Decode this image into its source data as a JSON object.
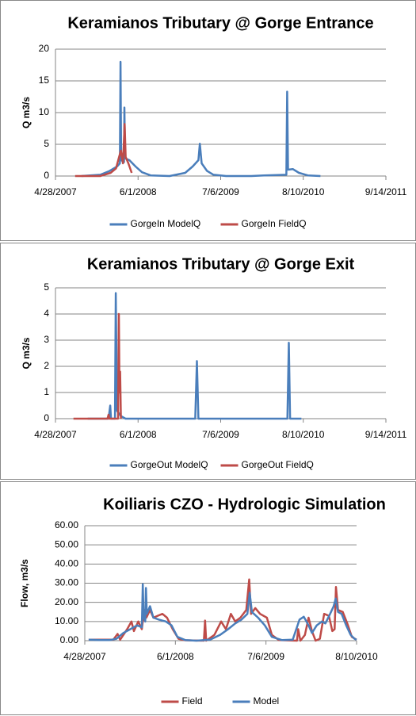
{
  "chart_data": [
    {
      "type": "line",
      "title": "Keramianos Tributary @ Gorge Entrance",
      "y_label": "Q m3/s",
      "xlim": [
        "4/28/2007",
        "9/14/2011"
      ],
      "xticks": [
        "4/28/2007",
        "6/1/2008",
        "7/6/2009",
        "8/10/2010",
        "9/14/2011"
      ],
      "ylim": [
        0,
        20
      ],
      "yticks": [
        0,
        5,
        10,
        15,
        20
      ],
      "grid": true,
      "legend": "bottom",
      "series": [
        {
          "name": "GorgeIn ModelQ",
          "color": "#4a7ebb",
          "x": [
            "9/1/2007",
            "12/1/2007",
            "1/15/2008",
            "2/20/2008",
            "3/5/2008",
            "3/8/2008",
            "3/11/2008",
            "3/25/2008",
            "3/27/2008",
            "3/30/2008",
            "4/20/2008",
            "5/20/2008",
            "6/20/2008",
            "8/1/2008",
            "11/1/2008",
            "1/15/2009",
            "2/20/2009",
            "3/20/2009",
            "3/27/2009",
            "4/5/2009",
            "5/1/2009",
            "6/1/2009",
            "8/1/2009",
            "12/1/2009",
            "2/1/2010",
            "5/20/2010",
            "5/24/2010",
            "5/28/2010",
            "6/20/2010",
            "7/20/2010",
            "9/1/2010",
            "11/1/2010"
          ],
          "values": [
            0,
            0.2,
            0.8,
            1.5,
            2,
            18,
            2.5,
            2.2,
            10.8,
            2.8,
            2.5,
            1.5,
            0.6,
            0.1,
            0,
            0.5,
            1.5,
            2.5,
            5.1,
            2,
            0.8,
            0.2,
            0,
            0,
            0.1,
            0.2,
            13.3,
            1,
            1.1,
            0.5,
            0.1,
            0
          ]
        },
        {
          "name": "GorgeIn FieldQ",
          "color": "#be4b48",
          "x": [
            "8/1/2007",
            "12/1/2007",
            "1/20/2008",
            "2/15/2008",
            "3/1/2008",
            "3/10/2008",
            "3/20/2008",
            "3/28/2008",
            "4/2/2008",
            "4/15/2008",
            "5/1/2008"
          ],
          "values": [
            0,
            0,
            0.5,
            1.2,
            3,
            4,
            2,
            8.2,
            3,
            2,
            0.5
          ]
        }
      ]
    },
    {
      "type": "line",
      "title": "Keramianos Tributary @ Gorge Exit",
      "y_label": "Q m3/s",
      "xlim": [
        "4/28/2007",
        "9/14/2011"
      ],
      "xticks": [
        "4/28/2007",
        "6/1/2008",
        "7/6/2009",
        "8/10/2010",
        "9/14/2011"
      ],
      "ylim": [
        0,
        5
      ],
      "yticks": [
        0,
        1,
        2,
        3,
        4,
        5
      ],
      "grid": true,
      "legend": "bottom",
      "series": [
        {
          "name": "GorgeOut ModelQ",
          "color": "#4a7ebb",
          "x": [
            "10/1/2007",
            "1/10/2008",
            "1/18/2008",
            "1/22/2008",
            "2/10/2008",
            "2/14/2008",
            "2/20/2008",
            "3/10/2008",
            "4/1/2008",
            "3/5/2009",
            "3/13/2009",
            "3/20/2009",
            "5/25/2010",
            "6/1/2010",
            "6/7/2010",
            "8/1/2010"
          ],
          "values": [
            0,
            0,
            0.5,
            0,
            0,
            4.8,
            0.3,
            0.1,
            0,
            0,
            2.2,
            0,
            0,
            2.9,
            0,
            0
          ]
        },
        {
          "name": "GorgeOut FieldQ",
          "color": "#be4b48",
          "x": [
            "7/24/2007",
            "1/5/2008",
            "1/10/2008",
            "1/14/2008",
            "2/25/2008",
            "2/29/2008",
            "3/3/2008",
            "3/6/2008",
            "3/10/2008"
          ],
          "values": [
            0,
            0,
            0.15,
            0,
            0,
            4,
            1,
            1.8,
            0
          ]
        }
      ]
    },
    {
      "type": "line",
      "title": "Koiliaris CZO - Hydrologic Simulation",
      "y_label": "Flow, m3/s",
      "xlim": [
        "4/28/2007",
        "8/10/2010"
      ],
      "xticks": [
        "4/28/2007",
        "6/1/2008",
        "7/6/2009",
        "8/10/2010"
      ],
      "ylim": [
        0,
        60
      ],
      "yticks": [
        {
          "value": 0,
          "label": "0.00"
        },
        {
          "value": 10,
          "label": "10.00"
        },
        {
          "value": 20,
          "label": "20.00"
        },
        {
          "value": 30,
          "label": "30.00"
        },
        {
          "value": 40,
          "label": "40.00"
        },
        {
          "value": 50,
          "label": "50.00"
        },
        {
          "value": 60,
          "label": "60.00"
        }
      ],
      "grid": true,
      "legend": "bottom",
      "series": [
        {
          "name": "Field",
          "color": "#be4b48",
          "x": [
            "5/15/2007",
            "9/1/2007",
            "9/20/2007",
            "10/1/2007",
            "11/1/2007",
            "11/20/2007",
            "12/1/2007",
            "12/20/2007",
            "1/5/2008",
            "1/15/2008",
            "1/25/2008",
            "2/10/2008",
            "2/25/2008",
            "3/15/2008",
            "4/5/2008",
            "4/25/2008",
            "5/20/2008",
            "6/15/2008",
            "7/15/2008",
            "10/5/2008",
            "10/10/2008",
            "10/15/2008",
            "11/20/2008",
            "12/20/2008",
            "1/10/2009",
            "2/1/2009",
            "2/20/2009",
            "3/15/2009",
            "4/10/2009",
            "4/23/2009",
            "5/1/2009",
            "5/20/2009",
            "6/10/2009",
            "7/10/2009",
            "8/1/2009",
            "9/1/2009",
            "11/20/2009",
            "11/25/2009",
            "12/5/2009",
            "12/25/2009",
            "1/10/2010",
            "1/25/2010",
            "2/10/2010",
            "3/1/2010",
            "3/20/2010",
            "4/10/2010",
            "4/25/2010",
            "5/5/2010",
            "5/11/2010",
            "5/20/2010",
            "6/10/2010",
            "6/30/2010",
            "7/20/2010",
            "8/10/2010"
          ],
          "values": [
            0.5,
            0.5,
            3.5,
            0.5,
            6,
            10,
            5,
            10,
            6,
            16,
            12,
            16,
            12,
            13,
            14,
            12,
            6,
            1,
            0.2,
            0,
            10.5,
            0,
            3,
            10,
            6,
            14,
            10,
            12,
            16,
            32,
            14,
            17,
            14,
            12,
            3,
            0.3,
            0,
            6,
            0,
            3,
            12,
            5,
            0,
            1,
            14,
            13,
            5,
            6,
            28,
            16,
            15,
            9,
            2,
            0.5
          ]
        },
        {
          "name": "Model",
          "color": "#4a7ebb",
          "x": [
            "5/15/2007",
            "7/1/2007",
            "8/15/2007",
            "9/15/2007",
            "10/15/2007",
            "11/15/2007",
            "12/15/2007",
            "1/5/2008",
            "1/9/2008",
            "1/13/2008",
            "1/20/2008",
            "1/23/2008",
            "1/27/2008",
            "2/10/2008",
            "2/25/2008",
            "3/20/2008",
            "4/20/2008",
            "5/15/2008",
            "6/10/2008",
            "7/15/2008",
            "9/1/2008",
            "11/1/2008",
            "12/15/2008",
            "1/20/2009",
            "2/20/2009",
            "3/20/2009",
            "4/15/2009",
            "4/25/2009",
            "5/5/2009",
            "6/1/2009",
            "7/1/2009",
            "8/1/2009",
            "9/15/2009",
            "11/1/2009",
            "12/1/2009",
            "12/20/2009",
            "1/10/2010",
            "1/25/2010",
            "2/15/2010",
            "3/10/2010",
            "3/25/2010",
            "4/15/2010",
            "5/1/2010",
            "5/10/2010",
            "5/20/2010",
            "6/5/2010",
            "6/25/2010",
            "7/15/2010",
            "8/1/2010",
            "8/10/2010"
          ],
          "values": [
            0.5,
            0.3,
            0.3,
            1,
            4,
            6,
            8,
            7,
            29.5,
            12,
            10,
            27.5,
            14,
            18,
            12,
            11,
            10,
            8,
            2,
            0.3,
            0,
            0.5,
            3,
            6,
            9,
            11,
            14,
            25,
            15,
            12,
            8,
            2,
            0.3,
            0.5,
            11,
            12.5,
            8,
            4,
            8,
            10,
            9,
            14,
            18,
            22,
            15,
            14,
            8,
            3,
            1,
            0.5
          ]
        }
      ]
    }
  ]
}
